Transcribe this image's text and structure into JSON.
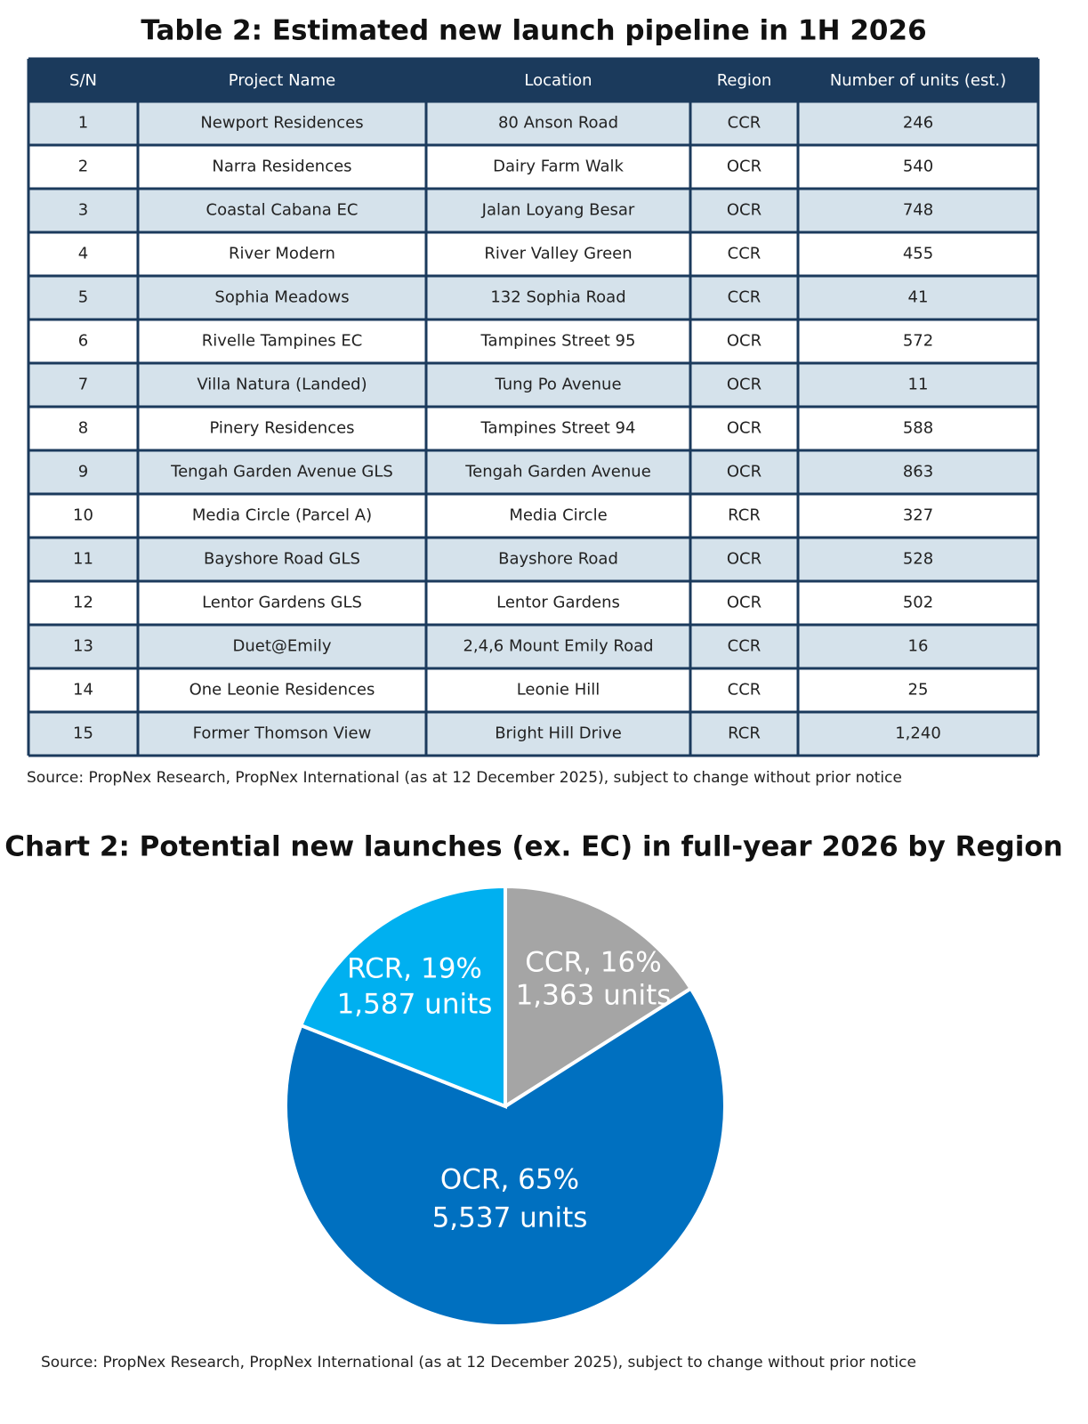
{
  "table": {
    "title": "Table 2: Estimated new launch pipeline in 1H 2026",
    "columns": [
      "S/N",
      "Project Name",
      "Location",
      "Region",
      "Number of units (est.)"
    ],
    "rows": [
      [
        "1",
        "Newport Residences",
        "80 Anson Road",
        "CCR",
        "246"
      ],
      [
        "2",
        "Narra Residences",
        "Dairy Farm Walk",
        "OCR",
        "540"
      ],
      [
        "3",
        "Coastal Cabana EC",
        "Jalan Loyang Besar",
        "OCR",
        "748"
      ],
      [
        "4",
        "River Modern",
        "River Valley Green",
        "CCR",
        "455"
      ],
      [
        "5",
        "Sophia Meadows",
        "132 Sophia Road",
        "CCR",
        "41"
      ],
      [
        "6",
        "Rivelle Tampines EC",
        "Tampines Street 95",
        "OCR",
        "572"
      ],
      [
        "7",
        "Villa Natura (Landed)",
        "Tung Po Avenue",
        "OCR",
        "11"
      ],
      [
        "8",
        "Pinery Residences",
        "Tampines Street 94",
        "OCR",
        "588"
      ],
      [
        "9",
        "Tengah Garden Avenue GLS",
        "Tengah Garden Avenue",
        "OCR",
        "863"
      ],
      [
        "10",
        "Media Circle (Parcel A)",
        "Media Circle",
        "RCR",
        "327"
      ],
      [
        "11",
        "Bayshore Road GLS",
        "Bayshore Road",
        "OCR",
        "528"
      ],
      [
        "12",
        "Lentor Gardens GLS",
        "Lentor Gardens",
        "OCR",
        "502"
      ],
      [
        "13",
        "Duet@Emily",
        "2,4,6 Mount Emily Road",
        "CCR",
        "16"
      ],
      [
        "14",
        "One Leonie Residences",
        "Leonie Hill",
        "CCR",
        "25"
      ],
      [
        "15",
        "Former Thomson View",
        "Bright Hill Drive",
        "RCR",
        "1,240"
      ]
    ],
    "source": "Source: PropNex Research, PropNex International (as at 12 December 2025), subject to change without prior notice"
  },
  "chart_data": {
    "type": "pie",
    "title": "Chart 2: Potential new launches (ex. EC) in full-year 2026 by Region",
    "values": [
      16,
      65,
      19
    ],
    "value_labels": [
      "CCR, 16%",
      "OCR, 65%",
      "RCR, 19%"
    ],
    "unit_labels": [
      "1,363 units",
      "5,537 units",
      "1,587 units"
    ],
    "colors": [
      "#a5a5a5",
      "#0070c0",
      "#00b0f0"
    ],
    "source": "Source: PropNex Research, PropNex International (as at 12 December 2025), subject to change without prior notice"
  }
}
